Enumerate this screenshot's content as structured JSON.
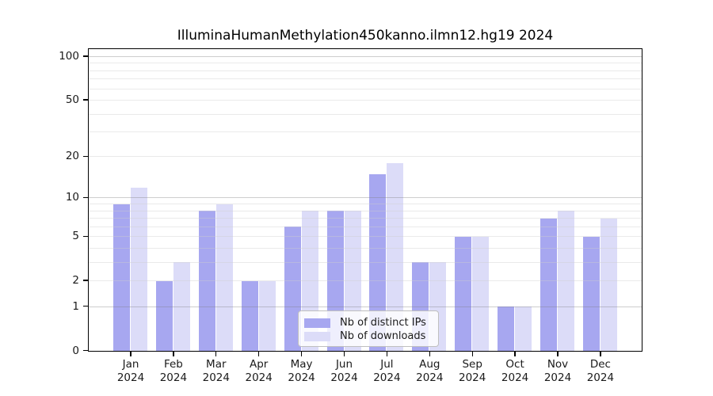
{
  "chart_data": {
    "type": "bar",
    "title": "IlluminaHumanMethylation450kanno.ilmn12.hg19 2024",
    "categories": [
      "Jan",
      "Feb",
      "Mar",
      "Apr",
      "May",
      "Jun",
      "Jul",
      "Aug",
      "Sep",
      "Oct",
      "Nov",
      "Dec"
    ],
    "category_year": "2024",
    "series": [
      {
        "name": "Nb of distinct IPs",
        "color": "#a7a7f0",
        "values": [
          9,
          2,
          8,
          2,
          6,
          8,
          15,
          3,
          5,
          1,
          7,
          5
        ]
      },
      {
        "name": "Nb of downloads",
        "color": "#dcdcf8",
        "values": [
          12,
          3,
          9,
          2,
          8,
          8,
          18,
          3,
          5,
          1,
          8,
          7
        ]
      }
    ],
    "xlabel": "",
    "ylabel": "",
    "yscale": "log1p",
    "ylim": [
      0,
      113
    ],
    "yticks": [
      0,
      1,
      2,
      5,
      10,
      20,
      50,
      100
    ],
    "major_gridlines": [
      1,
      10,
      100
    ],
    "minor_gridlines": [
      2,
      3,
      4,
      5,
      6,
      7,
      8,
      9,
      20,
      30,
      40,
      50,
      60,
      70,
      80,
      90
    ],
    "grid": true,
    "legend_position": "inside-bottom-center"
  },
  "colors": {
    "axis": "#000000",
    "major_grid": "rgba(125,125,125,0.38)",
    "minor_grid": "rgba(205,205,205,0.42)",
    "text": "#1a1a1a"
  }
}
